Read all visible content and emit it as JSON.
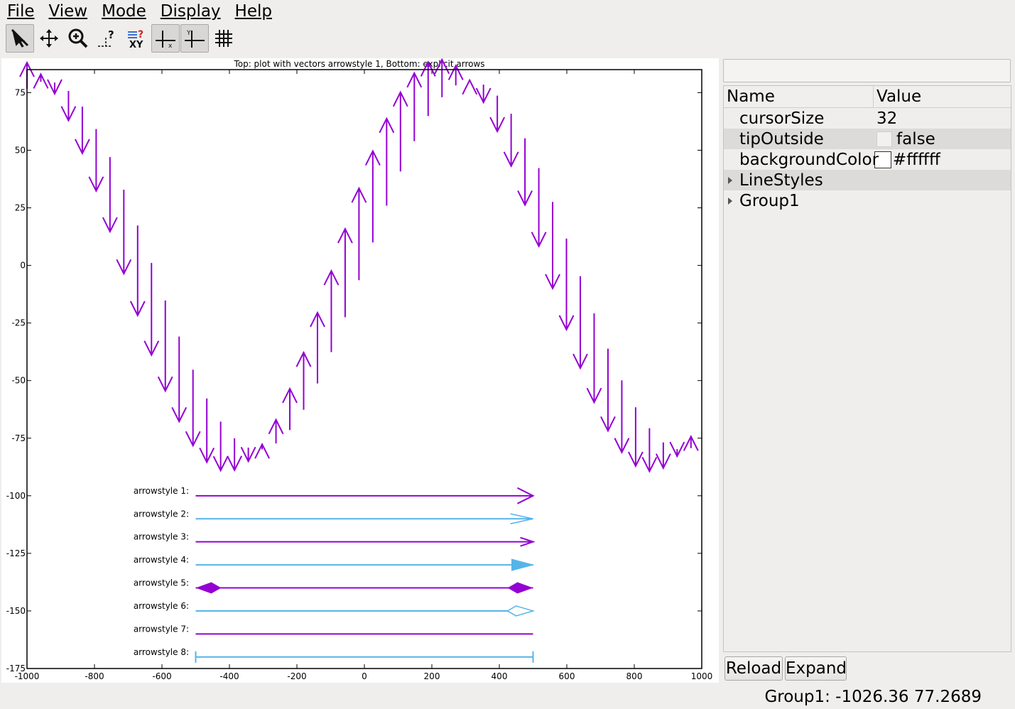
{
  "menu": [
    "File",
    "View",
    "Mode",
    "Display",
    "Help"
  ],
  "toolbar": {
    "tools": [
      {
        "name": "select-tool",
        "icon": "arrow-cursor-icon",
        "active": true
      },
      {
        "name": "pan-tool",
        "icon": "move-icon",
        "active": false
      },
      {
        "name": "zoom-tool",
        "icon": "zoom-icon",
        "active": false
      },
      {
        "name": "query-tool",
        "icon": "query-point-icon",
        "active": false
      },
      {
        "name": "xy-tool",
        "icon": "xy-readout-icon",
        "active": false
      },
      {
        "name": "x-axis-toggle",
        "icon": "x-axis-icon",
        "active": true
      },
      {
        "name": "y-axis-toggle",
        "icon": "y-axis-icon",
        "active": true
      },
      {
        "name": "grid-toggle",
        "icon": "grid-icon",
        "active": false
      }
    ]
  },
  "colors": {
    "purple": "#9400d3",
    "blue": "#56b4e9"
  },
  "chart_data": {
    "type": "vector",
    "title": "Top: plot with vectors arrowstyle 1, Bottom: explicit arrows",
    "xlim": [
      -1000,
      1000
    ],
    "ylim": [
      -175,
      85
    ],
    "xticks": [
      -1000,
      -800,
      -600,
      -400,
      -200,
      0,
      200,
      400,
      600,
      800,
      1000
    ],
    "yticks": [
      75,
      50,
      25,
      0,
      -25,
      -50,
      -75,
      -100,
      -125,
      -150,
      -175
    ],
    "vectors_formula": "x = -1000..1000 step 41, y = 80*sin(x/200), dx = 0, dy = 40*cos(x/200)",
    "arrows": [
      {
        "label": "arrowstyle 1:",
        "y": -100,
        "x_from": -500,
        "x_to": 500,
        "color": "purple",
        "head": "open"
      },
      {
        "label": "arrowstyle 2:",
        "y": -110,
        "x_from": -500,
        "x_to": 500,
        "color": "blue",
        "head": "open-thin"
      },
      {
        "label": "arrowstyle 3:",
        "y": -120,
        "x_from": -500,
        "x_to": 500,
        "color": "purple",
        "head": "open-small"
      },
      {
        "label": "arrowstyle 4:",
        "y": -130,
        "x_from": -500,
        "x_to": 500,
        "color": "blue",
        "head": "filled"
      },
      {
        "label": "arrowstyle 5:",
        "y": -140,
        "x_from": -500,
        "x_to": 500,
        "color": "purple",
        "head": "filled-both"
      },
      {
        "label": "arrowstyle 6:",
        "y": -150,
        "x_from": -500,
        "x_to": 500,
        "color": "blue",
        "head": "empty"
      },
      {
        "label": "arrowstyle 7:",
        "y": -160,
        "x_from": -500,
        "x_to": 500,
        "color": "purple",
        "head": "none"
      },
      {
        "label": "arrowstyle 8:",
        "y": -170,
        "x_from": -500,
        "x_to": 500,
        "color": "blue",
        "head": "bars"
      }
    ]
  },
  "properties": {
    "header_name": "Name",
    "header_value": "Value",
    "rows": [
      {
        "name": "cursorSize",
        "value": "32"
      },
      {
        "name": "tipOutside",
        "value": "false"
      },
      {
        "name": "backgroundColor",
        "value": "#ffffff"
      },
      {
        "name": "LineStyles"
      },
      {
        "name": "Group1"
      }
    ]
  },
  "buttons": {
    "reload": "Reload",
    "expand": "Expand"
  },
  "status": "Group1: -1026.36 77.2689"
}
